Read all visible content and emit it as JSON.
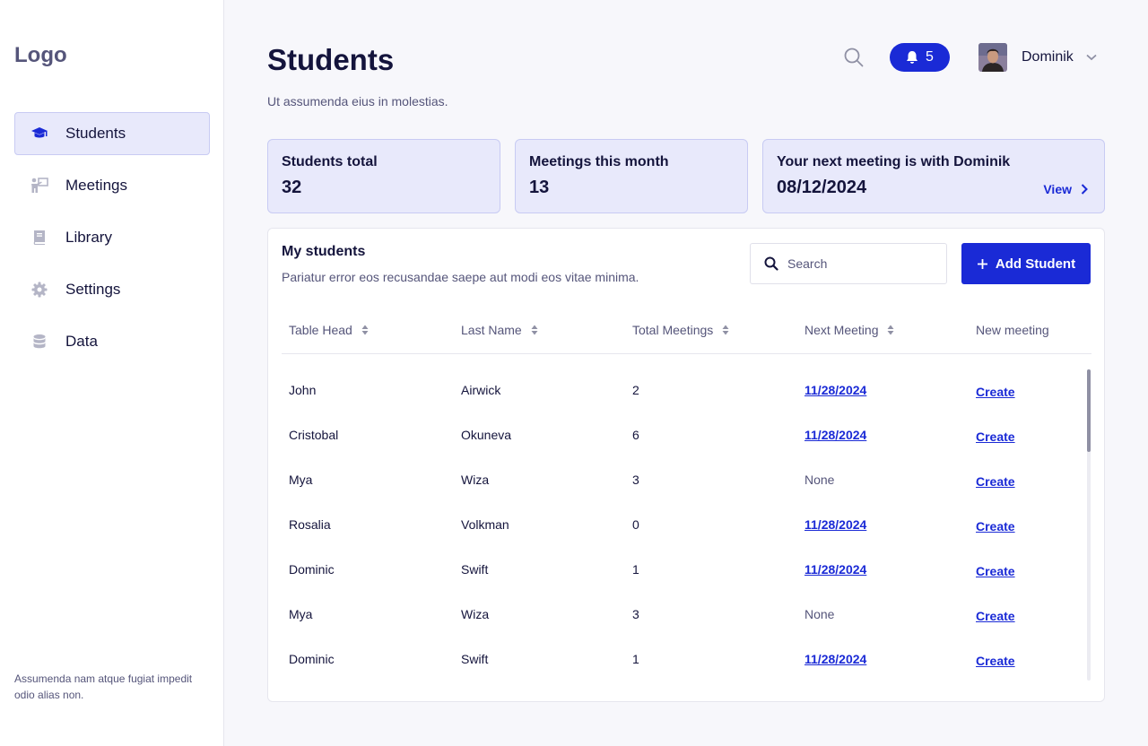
{
  "sidebar": {
    "logo": "Logo",
    "items": [
      {
        "label": "Students",
        "icon": "graduation-cap-icon",
        "active": true
      },
      {
        "label": "Meetings",
        "icon": "presenter-icon",
        "active": false
      },
      {
        "label": "Library",
        "icon": "book-icon",
        "active": false
      },
      {
        "label": "Settings",
        "icon": "gear-icon",
        "active": false
      },
      {
        "label": "Data",
        "icon": "database-icon",
        "active": false
      }
    ],
    "note": "Assumenda nam atque fugiat impedit odio alias non."
  },
  "header": {
    "title": "Students",
    "subtitle": "Ut assumenda eius in molestias.",
    "notifications_count": "5",
    "user_name": "Dominik"
  },
  "stats": [
    {
      "label": "Students total",
      "value": "32"
    },
    {
      "label": "Meetings this month",
      "value": "13"
    },
    {
      "label": "Your next meeting is with Dominik",
      "value": "08/12/2024",
      "action": "View"
    }
  ],
  "students_panel": {
    "title": "My students",
    "description": "Pariatur error eos recusandae saepe aut modi eos vitae minima.",
    "search_placeholder": "Search",
    "add_button": "Add Student",
    "columns": [
      "Table Head",
      "Last Name",
      "Total Meetings",
      "Next Meeting",
      "New meeting"
    ],
    "rows": [
      {
        "first": "John",
        "last": "Airwick",
        "total": "2",
        "next": "11/28/2024",
        "action": "Create"
      },
      {
        "first": "Cristobal",
        "last": "Okuneva",
        "total": "6",
        "next": "11/28/2024",
        "action": "Create"
      },
      {
        "first": "Mya",
        "last": "Wiza",
        "total": "3",
        "next": "None",
        "action": "Create"
      },
      {
        "first": "Rosalia",
        "last": "Volkman",
        "total": "0",
        "next": "11/28/2024",
        "action": "Create"
      },
      {
        "first": "Dominic",
        "last": "Swift",
        "total": "1",
        "next": "11/28/2024",
        "action": "Create"
      },
      {
        "first": "Mya",
        "last": "Wiza",
        "total": "3",
        "next": "None",
        "action": "Create"
      },
      {
        "first": "Dominic",
        "last": "Swift",
        "total": "1",
        "next": "11/28/2024",
        "action": "Create"
      }
    ]
  },
  "colors": {
    "accent": "#1a2ad6",
    "card_bg": "#e8e9fb",
    "text": "#14143c",
    "muted": "#55557a"
  }
}
